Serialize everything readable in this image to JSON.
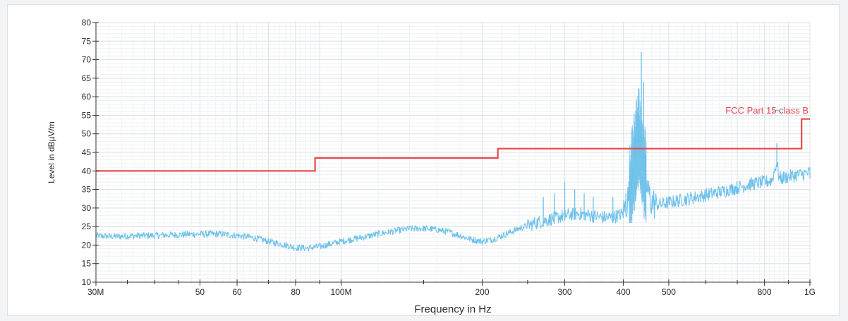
{
  "chart_data": {
    "type": "line",
    "title": "",
    "xlabel": "Frequency in Hz",
    "ylabel": "Level in dBµV/m",
    "x_scale": "log",
    "xlim": [
      30000000,
      1000000000
    ],
    "ylim": [
      10,
      80
    ],
    "grid": true,
    "x_ticks": [
      {
        "value": 30000000,
        "label": "30M"
      },
      {
        "value": 50000000,
        "label": "50"
      },
      {
        "value": 60000000,
        "label": "60"
      },
      {
        "value": 80000000,
        "label": "80"
      },
      {
        "value": 100000000,
        "label": "100M"
      },
      {
        "value": 200000000,
        "label": "200"
      },
      {
        "value": 300000000,
        "label": "300"
      },
      {
        "value": 400000000,
        "label": "400"
      },
      {
        "value": 500000000,
        "label": "500"
      },
      {
        "value": 800000000,
        "label": "800"
      },
      {
        "value": 1000000000,
        "label": "1G"
      }
    ],
    "y_ticks": [
      {
        "value": 10,
        "label": "10"
      },
      {
        "value": 15,
        "label": "15"
      },
      {
        "value": 20,
        "label": "20"
      },
      {
        "value": 25,
        "label": "25"
      },
      {
        "value": 30,
        "label": "30"
      },
      {
        "value": 35,
        "label": "35"
      },
      {
        "value": 40,
        "label": "40"
      },
      {
        "value": 45,
        "label": "45"
      },
      {
        "value": 50,
        "label": "50"
      },
      {
        "value": 55,
        "label": "55"
      },
      {
        "value": 60,
        "label": "60"
      },
      {
        "value": 65,
        "label": "65"
      },
      {
        "value": 70,
        "label": "70"
      },
      {
        "value": 75,
        "label": "75"
      },
      {
        "value": 80,
        "label": "80"
      }
    ],
    "series": [
      {
        "name": "FCC Part 15 class B",
        "color": "#e8484e",
        "style": "step",
        "x": [
          30000000,
          88000000,
          88000000,
          216000000,
          216000000,
          960000000,
          960000000,
          1000000000
        ],
        "y": [
          40,
          40,
          43.5,
          43.5,
          46,
          46,
          54,
          54
        ]
      },
      {
        "color": "#6ec1ea",
        "style": "spectrum",
        "x": [
          30000000,
          33000000,
          36000000,
          40000000,
          45000000,
          50000000,
          55000000,
          60000000,
          65000000,
          70000000,
          75000000,
          80000000,
          85000000,
          90000000,
          95000000,
          100000000,
          110000000,
          120000000,
          130000000,
          140000000,
          150000000,
          160000000,
          170000000,
          180000000,
          190000000,
          200000000,
          210000000,
          220000000,
          240000000,
          260000000,
          280000000,
          300000000,
          320000000,
          340000000,
          360000000,
          380000000,
          400000000,
          410000000,
          420000000,
          430000000,
          440000000,
          450000000,
          460000000,
          470000000,
          480000000,
          500000000,
          550000000,
          600000000,
          650000000,
          700000000,
          750000000,
          800000000,
          830000000,
          850000000,
          860000000,
          870000000,
          900000000,
          950000000,
          1000000000
        ],
        "y": [
          22.5,
          22.3,
          22.5,
          22.6,
          22.8,
          23.0,
          23.0,
          22.6,
          22.0,
          21.0,
          20.2,
          19.3,
          19.2,
          19.6,
          20.3,
          21.0,
          22.0,
          23.0,
          23.8,
          24.4,
          24.5,
          24.2,
          23.5,
          22.5,
          21.5,
          21.0,
          21.5,
          22.5,
          24.5,
          26.0,
          27.0,
          28.0,
          28.5,
          28.0,
          27.5,
          27.5,
          28.5,
          33.0,
          42.0,
          50.0,
          45.0,
          35.0,
          31.5,
          31.0,
          31.0,
          31.5,
          32.5,
          33.5,
          34.5,
          35.5,
          36.5,
          37.0,
          37.5,
          42.5,
          38.0,
          38.0,
          38.5,
          39.0,
          39.5
        ],
        "spikes": [
          {
            "x": 270000000,
            "y": 33
          },
          {
            "x": 285000000,
            "y": 34
          },
          {
            "x": 300000000,
            "y": 37
          },
          {
            "x": 315000000,
            "y": 35
          },
          {
            "x": 330000000,
            "y": 34
          },
          {
            "x": 345000000,
            "y": 33
          },
          {
            "x": 380000000,
            "y": 33
          },
          {
            "x": 405000000,
            "y": 34
          },
          {
            "x": 425000000,
            "y": 55
          },
          {
            "x": 432000000,
            "y": 62
          },
          {
            "x": 437000000,
            "y": 72
          },
          {
            "x": 442000000,
            "y": 64
          },
          {
            "x": 447000000,
            "y": 48
          },
          {
            "x": 850000000,
            "y": 47.5
          },
          {
            "x": 1000000000,
            "y": 41
          }
        ]
      }
    ],
    "annotations": [
      {
        "text": "FCC Part 15 class B",
        "color": "#e8484e"
      }
    ]
  }
}
